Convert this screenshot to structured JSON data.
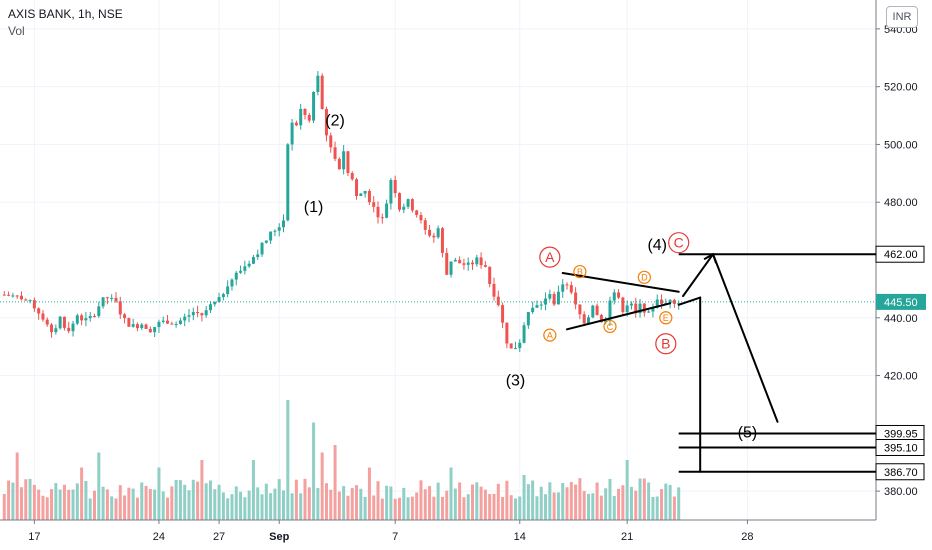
{
  "header": {
    "symbol_line": "AXIS BANK, 1h, NSE",
    "volume_label": "Vol",
    "currency_button": "INR"
  },
  "colors": {
    "up": "#26a69a",
    "down": "#ef5350",
    "vol_up": "#8fcfc6",
    "vol_down": "#f4a09e",
    "grid": "#f0f3fa",
    "axis_text": "#131722",
    "last_price_bg": "#26a69a",
    "wave_red": "#e53935",
    "wave_orange": "#f57c00",
    "drawing": "#000000"
  },
  "chart_data": {
    "type": "candlestick",
    "title": "AXIS BANK, 1h, NSE",
    "price_axis": {
      "ticks": [
        "540.00",
        "520.00",
        "500.00",
        "480.00",
        "440.00",
        "420.00",
        "380.00"
      ],
      "ylim": [
        370,
        550
      ]
    },
    "time_axis": {
      "ticks": [
        "17",
        "24",
        "27",
        "Sep",
        "7",
        "14",
        "21",
        "28"
      ]
    },
    "price_path": [
      [
        0,
        448
      ],
      [
        4,
        447
      ],
      [
        7,
        444
      ],
      [
        9,
        440
      ],
      [
        11,
        434
      ],
      [
        13,
        440
      ],
      [
        15,
        435
      ],
      [
        17,
        441
      ],
      [
        19,
        439
      ],
      [
        21,
        441
      ],
      [
        23,
        446
      ],
      [
        24,
        447
      ],
      [
        26,
        445
      ],
      [
        28,
        439
      ],
      [
        30,
        437
      ],
      [
        32,
        438
      ],
      [
        34,
        436
      ],
      [
        36,
        438
      ],
      [
        38,
        439
      ],
      [
        40,
        438
      ],
      [
        42,
        440
      ],
      [
        44,
        442
      ],
      [
        46,
        441
      ],
      [
        48,
        444
      ],
      [
        50,
        446
      ],
      [
        52,
        452
      ],
      [
        54,
        455
      ],
      [
        56,
        458
      ],
      [
        58,
        461
      ],
      [
        60,
        465
      ],
      [
        62,
        469
      ],
      [
        64,
        472
      ],
      [
        65,
        474
      ],
      [
        66,
        501
      ],
      [
        67,
        507
      ],
      [
        68,
        507
      ],
      [
        69,
        512
      ],
      [
        70,
        510
      ],
      [
        71,
        508
      ],
      [
        72,
        518
      ],
      [
        73,
        523
      ],
      [
        74,
        512
      ],
      [
        75,
        504
      ],
      [
        76,
        498
      ],
      [
        77,
        496
      ],
      [
        78,
        492
      ],
      [
        79,
        498
      ],
      [
        80,
        490
      ],
      [
        81,
        488
      ],
      [
        82,
        482
      ],
      [
        84,
        484
      ],
      [
        86,
        478
      ],
      [
        88,
        474
      ],
      [
        89,
        480
      ],
      [
        90,
        488
      ],
      [
        91,
        484
      ],
      [
        92,
        478
      ],
      [
        94,
        480
      ],
      [
        96,
        476
      ],
      [
        98,
        470
      ],
      [
        100,
        468
      ],
      [
        101,
        471
      ],
      [
        102,
        462
      ],
      [
        103,
        455
      ],
      [
        104,
        460
      ],
      [
        106,
        459
      ],
      [
        108,
        458
      ],
      [
        110,
        460
      ],
      [
        112,
        458
      ],
      [
        113,
        452
      ],
      [
        115,
        445
      ],
      [
        116,
        438
      ],
      [
        117,
        432
      ],
      [
        118,
        429
      ],
      [
        119,
        430
      ],
      [
        120,
        432
      ],
      [
        121,
        438
      ],
      [
        122,
        442
      ],
      [
        124,
        444
      ],
      [
        126,
        446
      ],
      [
        127,
        449
      ],
      [
        128,
        445
      ],
      [
        129,
        448
      ],
      [
        130,
        452
      ],
      [
        131,
        452
      ],
      [
        132,
        448
      ],
      [
        133,
        444
      ],
      [
        134,
        441
      ],
      [
        135,
        439
      ],
      [
        136,
        441
      ],
      [
        137,
        445
      ],
      [
        138,
        441
      ],
      [
        139,
        438
      ],
      [
        140,
        440
      ],
      [
        141,
        447
      ],
      [
        142,
        449
      ],
      [
        143,
        446
      ],
      [
        144,
        443
      ],
      [
        145,
        445
      ],
      [
        146,
        444
      ],
      [
        147,
        441
      ],
      [
        148,
        444
      ],
      [
        149,
        443
      ],
      [
        150,
        441
      ],
      [
        151,
        444
      ],
      [
        152,
        447
      ],
      [
        153,
        444
      ],
      [
        154,
        445
      ],
      [
        155,
        447
      ],
      [
        156,
        446
      ],
      [
        157,
        445.5
      ]
    ],
    "bars": 157,
    "x_range": [
      -1,
      158
    ],
    "x_tick_bars": [
      7,
      36,
      50,
      64,
      91,
      120,
      145,
      173
    ],
    "volume": {
      "ylim": [
        0,
        100
      ],
      "spikes": [
        [
          3,
          45
        ],
        [
          18,
          35
        ],
        [
          22,
          45
        ],
        [
          36,
          35
        ],
        [
          46,
          40
        ],
        [
          58,
          40
        ],
        [
          66,
          80
        ],
        [
          72,
          65
        ],
        [
          74,
          45
        ],
        [
          77,
          50
        ],
        [
          85,
          35
        ],
        [
          104,
          35
        ],
        [
          121,
          30
        ],
        [
          138,
          25
        ],
        [
          145,
          40
        ]
      ],
      "base": 14
    },
    "last_price": "445.50",
    "horizontal_levels": [
      {
        "value": 462.0,
        "label": "462.00"
      },
      {
        "value": 399.95,
        "label": "399.95"
      },
      {
        "value": 395.1,
        "label": "395.10"
      },
      {
        "value": 386.7,
        "label": "386.70"
      }
    ],
    "wave_labels": {
      "primary": [
        "(1)",
        "(2)",
        "(3)",
        "(4)",
        "(5)"
      ],
      "circled_red": [
        "A",
        "B",
        "C"
      ],
      "circled_orange": [
        "A",
        "B",
        "C",
        "D",
        "E"
      ]
    },
    "annotation_points": {
      "(1)": [
        72,
        478
      ],
      "(2)": [
        77,
        508
      ],
      "(3)": [
        119,
        418
      ],
      "(4)": [
        152,
        465
      ],
      "(5)": [
        173,
        400
      ],
      "A_red": [
        127,
        461
      ],
      "B_red": [
        154,
        431
      ],
      "C_red": [
        157,
        466
      ],
      "A_or": [
        127,
        434
      ],
      "B_or": [
        134,
        456
      ],
      "C_or": [
        141,
        437
      ],
      "D_or": [
        149,
        454
      ],
      "E_or": [
        154,
        440
      ]
    }
  }
}
